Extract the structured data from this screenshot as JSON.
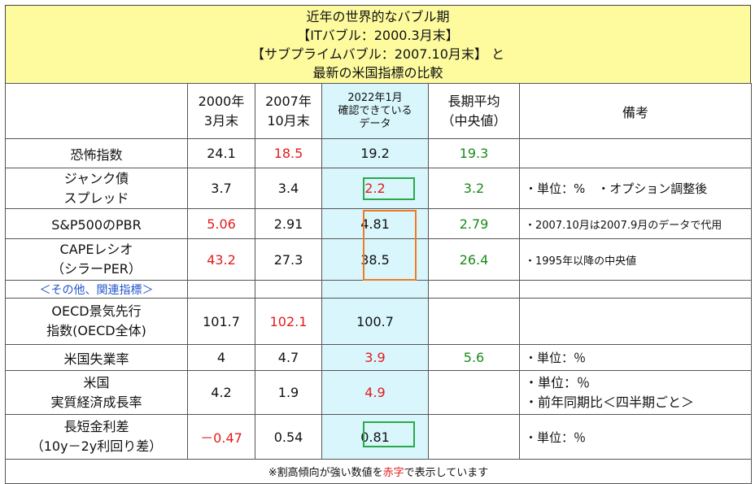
{
  "title": {
    "line1": "近年の世界的なバブル期",
    "line2": "【ITバブル：2000.3月末】",
    "line3": "【サブプライムバブル：2007.10月末】 と",
    "line4": "最新の米国指標の比較"
  },
  "headers": {
    "col2000_a": "2000年",
    "col2000_b": "3月末",
    "col2007_a": "2007年",
    "col2007_b": "10月末",
    "col2022_a": "2022年1月",
    "col2022_b": "確認できている",
    "col2022_c": "データ",
    "colLong_a": "長期平均",
    "colLong_b": "（中央値）",
    "colNote": "備考"
  },
  "rows": {
    "fear": {
      "label": "恐怖指数",
      "v2000": "24.1",
      "v2007": "18.5",
      "v2022": "19.2",
      "long": "19.3",
      "note": ""
    },
    "junk": {
      "label_a": "ジャンク債",
      "label_b": "スプレッド",
      "v2000": "3.7",
      "v2007": "3.4",
      "v2022": "2.2",
      "long": "3.2",
      "note": "・単位：%　・オプション調整後"
    },
    "pbr": {
      "label": "S&P500のPBR",
      "v2000": "5.06",
      "v2007": "2.91",
      "v2022": "4.81",
      "long": "2.79",
      "note": "・2007.10月は2007.9月のデータで代用"
    },
    "cape": {
      "label_a": "CAPEレシオ",
      "label_b": "（シラーPER）",
      "v2000": "43.2",
      "v2007": "27.3",
      "v2022": "38.5",
      "long": "26.4",
      "note": "・1995年以降の中央値"
    },
    "section": {
      "label": "＜その他、関連指標＞"
    },
    "oecd": {
      "label_a": "OECD景気先行",
      "label_b": "指数(OECD全体)",
      "v2000": "101.7",
      "v2007": "102.1",
      "v2022": "100.7",
      "long": "",
      "note": ""
    },
    "unemp": {
      "label": "米国失業率",
      "v2000": "4",
      "v2007": "4.7",
      "v2022": "3.9",
      "long": "5.6",
      "note": "・単位：％"
    },
    "gdp": {
      "label_a": "米国",
      "label_b": "実質経済成長率",
      "v2000": "4.2",
      "v2007": "1.9",
      "v2022": "4.9",
      "long": "",
      "note_a": "・単位：％",
      "note_b": "・前年同期比＜四半期ごと＞"
    },
    "spread": {
      "label_a": "長短金利差",
      "label_b": "（10y－2y利回り差）",
      "v2000": "－0.47",
      "v2007": "0.54",
      "v2022": "0.81",
      "long": "",
      "note": "・単位：％"
    }
  },
  "footer": {
    "pre": "※割高傾向が強い数値を",
    "red": "赤字",
    "post": "で表示しています"
  },
  "colors": {
    "title_bg": "#fdfb9e",
    "highlight_bg": "#d8f6fb",
    "red": "#e31b1b",
    "green": "#1a8a1a",
    "blue": "#2255cc",
    "box_green": "#2aa84a",
    "box_orange": "#f07a20"
  }
}
